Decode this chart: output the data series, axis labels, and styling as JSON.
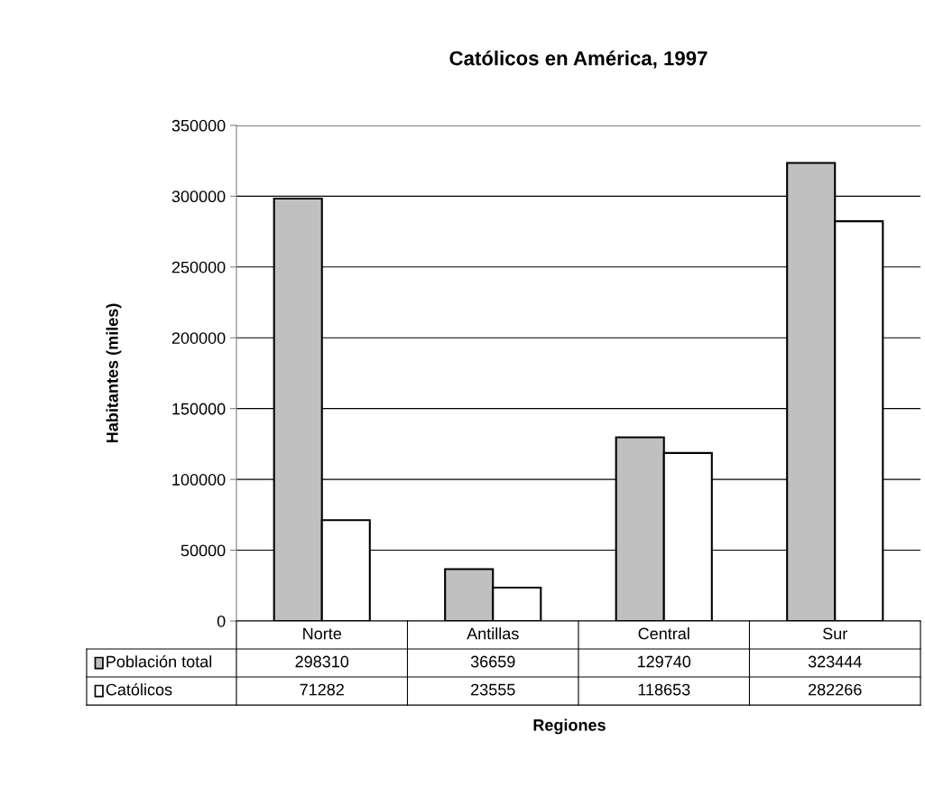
{
  "chart_data": {
    "type": "bar",
    "title": "Católicos en América, 1997",
    "xlabel": "Regiones",
    "ylabel": "Habitantes (miles)",
    "categories": [
      "Norte",
      "Antillas",
      "Central",
      "Sur"
    ],
    "series": [
      {
        "name": "Población total",
        "color": "#c0c0c0",
        "values": [
          298310,
          36659,
          129740,
          323444
        ]
      },
      {
        "name": "Católicos",
        "color": "#ffffff",
        "values": [
          71282,
          23555,
          118653,
          282266
        ]
      }
    ],
    "ylim": [
      0,
      350000
    ],
    "yticks": [
      0,
      50000,
      100000,
      150000,
      200000,
      250000,
      300000,
      350000
    ],
    "grid": "y",
    "data_labels": true,
    "legend": "bottom"
  }
}
